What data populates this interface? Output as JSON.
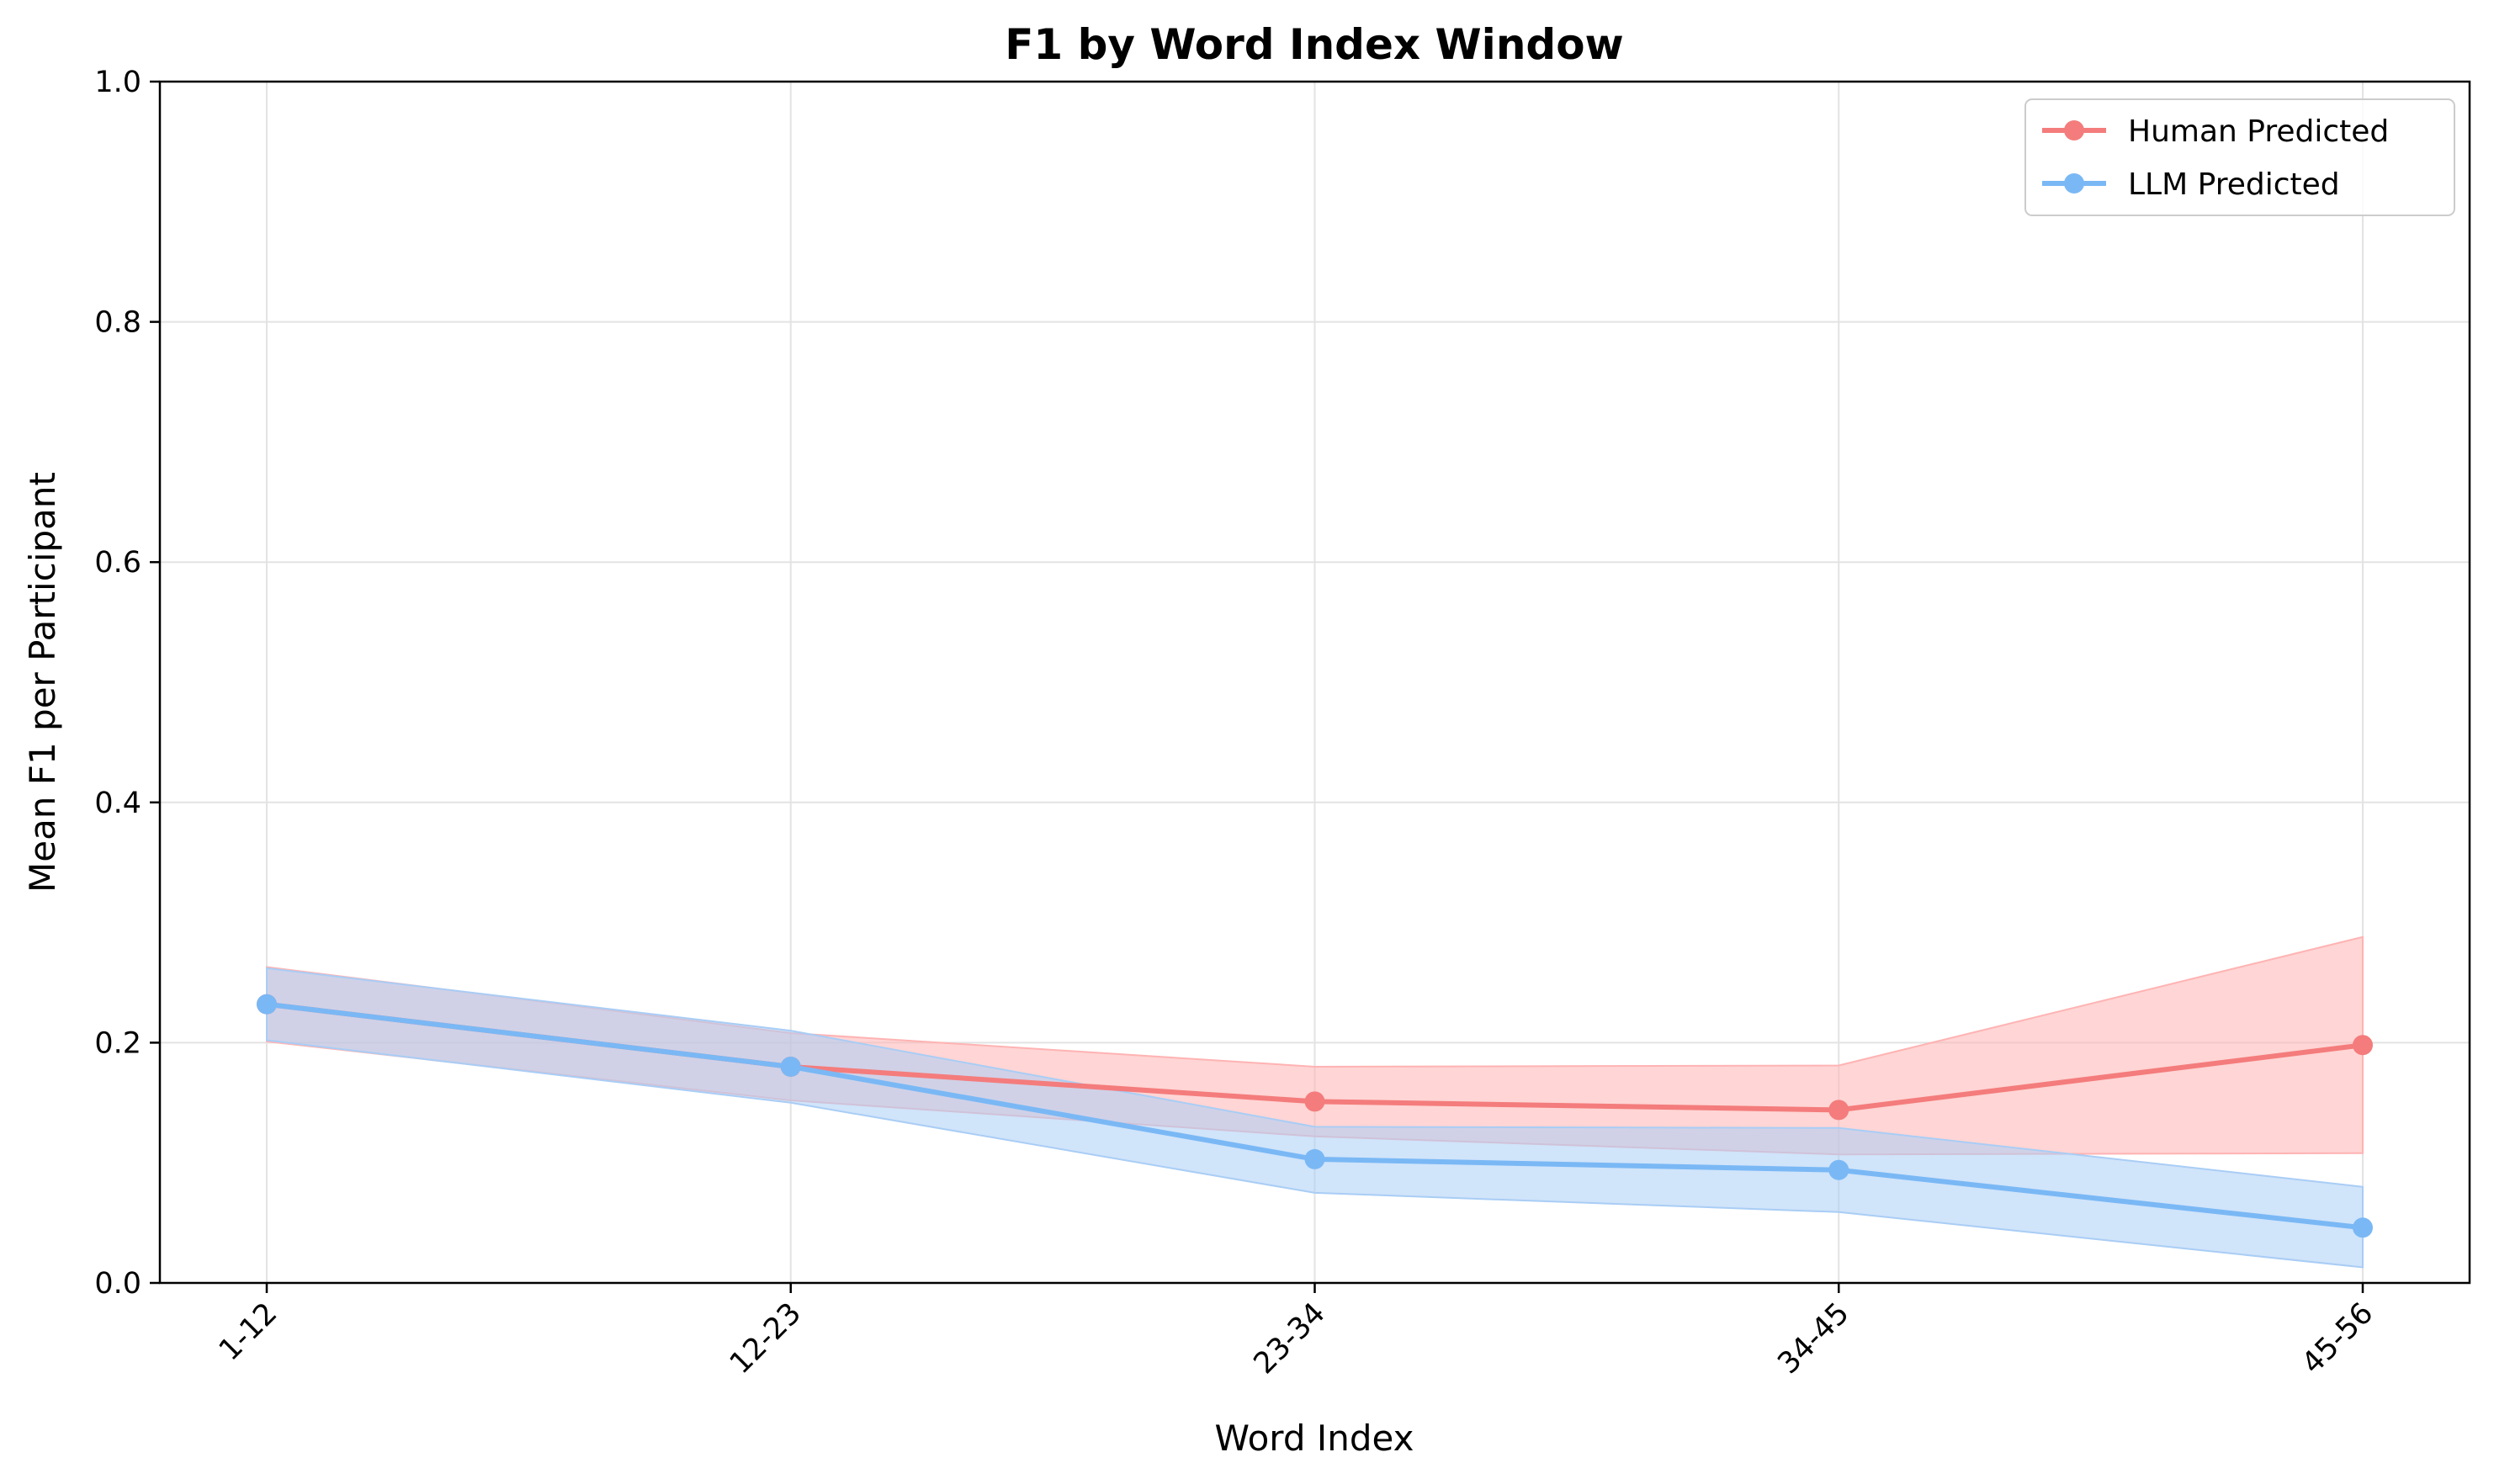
{
  "chart_data": {
    "type": "line",
    "title": "F1 by Word Index Window",
    "xlabel": "Word Index",
    "ylabel": "Mean F1 per Participant",
    "categories": [
      "1-12",
      "12-23",
      "23-34",
      "34-45",
      "45-56"
    ],
    "ylim": [
      0,
      1.0
    ],
    "yticks": [
      "0.0",
      "0.2",
      "0.4",
      "0.6",
      "0.8",
      "1.0"
    ],
    "ytick_values": [
      0,
      0.2,
      0.4,
      0.6,
      0.8,
      1.0
    ],
    "grid": true,
    "legend_position": "top-right",
    "series": [
      {
        "name": "Human Predicted",
        "color": "#f47c7c",
        "band_color": "#ffb3b3",
        "values": [
          0.232,
          0.18,
          0.151,
          0.144,
          0.198
        ],
        "lower": [
          0.201,
          0.152,
          0.122,
          0.107,
          0.108
        ],
        "upper": [
          0.263,
          0.208,
          0.18,
          0.181,
          0.288
        ]
      },
      {
        "name": "LLM Predicted",
        "color": "#7ab8f5",
        "band_color": "#a9cdf5",
        "values": [
          0.232,
          0.18,
          0.103,
          0.094,
          0.046
        ],
        "lower": [
          0.202,
          0.15,
          0.075,
          0.059,
          0.013
        ],
        "upper": [
          0.262,
          0.21,
          0.13,
          0.129,
          0.08
        ]
      }
    ]
  }
}
